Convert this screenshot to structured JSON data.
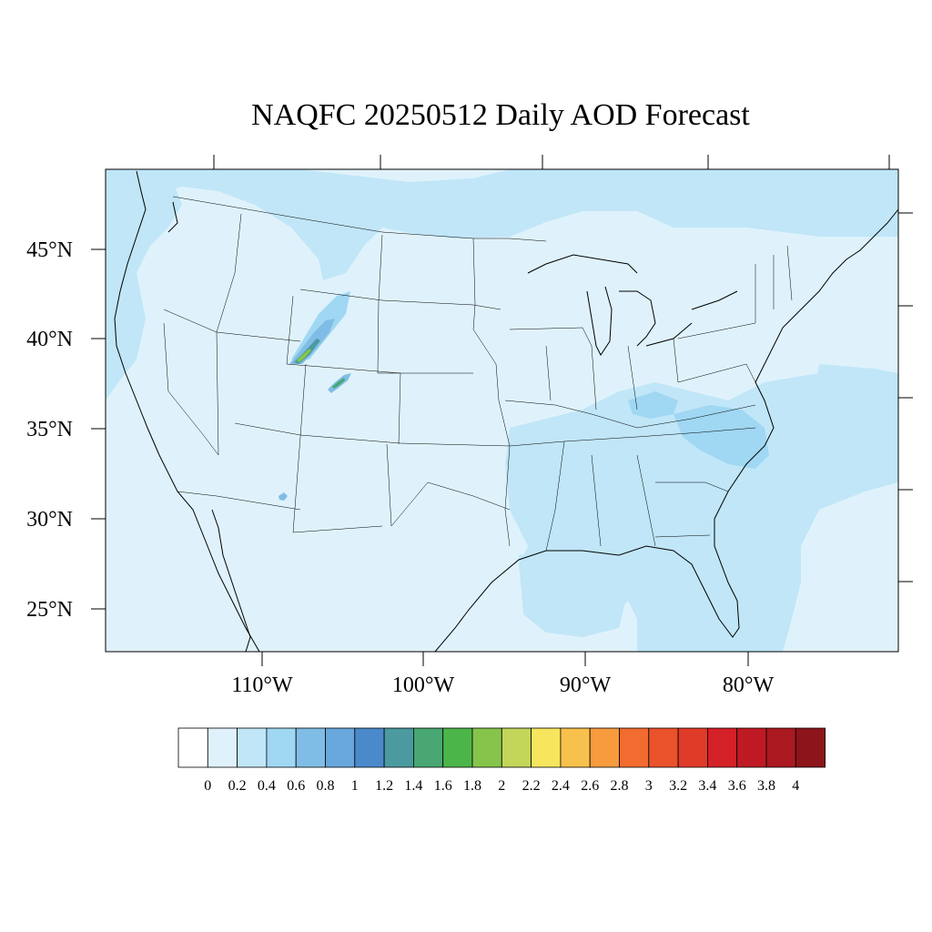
{
  "title": "NAQFC 20250512 Daily AOD Forecast",
  "map": {
    "projection": "lambert-conformal",
    "region": "CONUS",
    "lat_labels": [
      "45°N",
      "40°N",
      "35°N",
      "30°N",
      "25°N"
    ],
    "lon_labels": [
      "110°W",
      "100°W",
      "90°W",
      "80°W"
    ],
    "background_color": "#dff2fb",
    "plume_regions": [
      {
        "name": "northern-colorado-wyoming-smoke",
        "max_aod": 2.2
      },
      {
        "name": "southern-colorado-smoke",
        "max_aod": 1.8
      },
      {
        "name": "southeast-haze",
        "max_aod": 0.4
      },
      {
        "name": "gulf-haze",
        "max_aod": 0.4
      },
      {
        "name": "northwest-haze",
        "max_aod": 0.4
      }
    ]
  },
  "colorbar": {
    "labels": [
      "0",
      "0.2",
      "0.4",
      "0.6",
      "0.8",
      "1",
      "1.2",
      "1.4",
      "1.6",
      "1.8",
      "2",
      "2.2",
      "2.4",
      "2.6",
      "2.8",
      "3",
      "3.2",
      "3.4",
      "3.6",
      "3.8",
      "4"
    ],
    "colors": [
      "#ffffff",
      "#dff2fb",
      "#c0e6f8",
      "#a0d7f3",
      "#80bde6",
      "#68a8dc",
      "#4a8acb",
      "#4a9aa0",
      "#48a772",
      "#4cb549",
      "#86c44b",
      "#c3d65a",
      "#f7e65d",
      "#f8c04d",
      "#f79b3d",
      "#f26b2f",
      "#e9522b",
      "#e03a28",
      "#d42027",
      "#bf1a23",
      "#aa1820",
      "#8d141b"
    ]
  }
}
